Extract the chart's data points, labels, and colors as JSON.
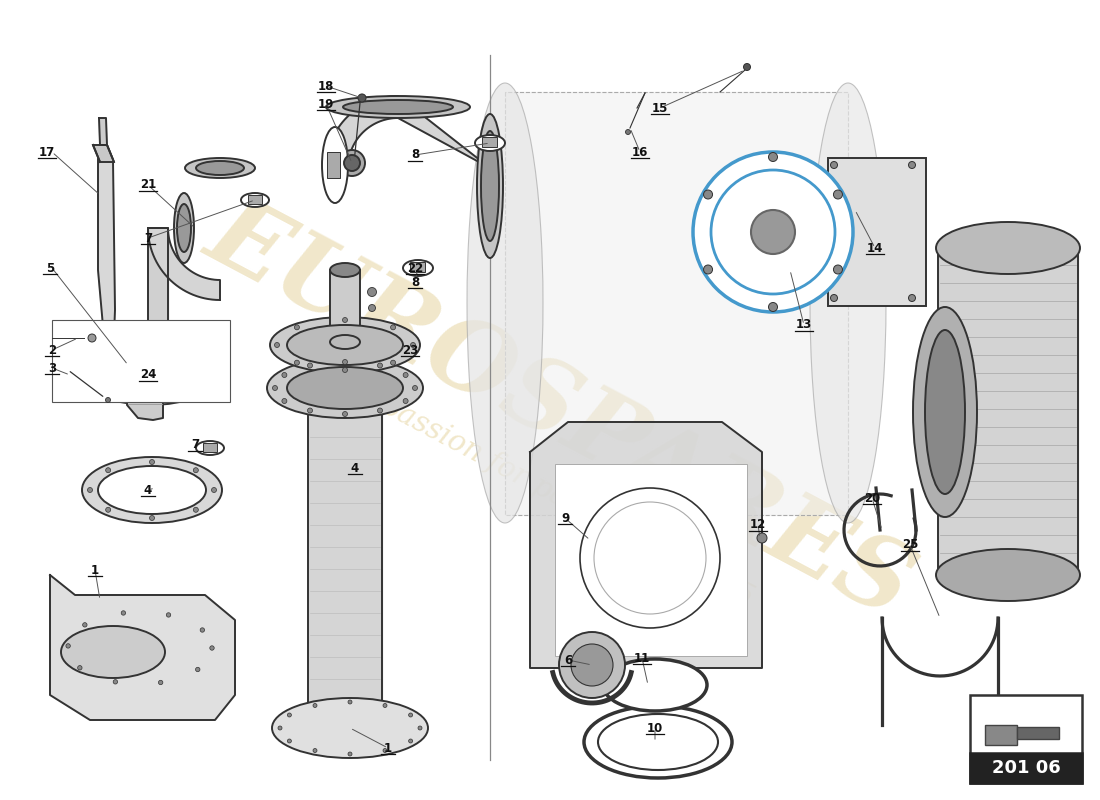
{
  "background_color": "#ffffff",
  "line_color": "#333333",
  "accent_color": "#4499cc",
  "watermark_color": "#ccaa44",
  "watermark_alpha": 0.28,
  "part_code": "201 06",
  "fig_width": 11.0,
  "fig_height": 8.0
}
